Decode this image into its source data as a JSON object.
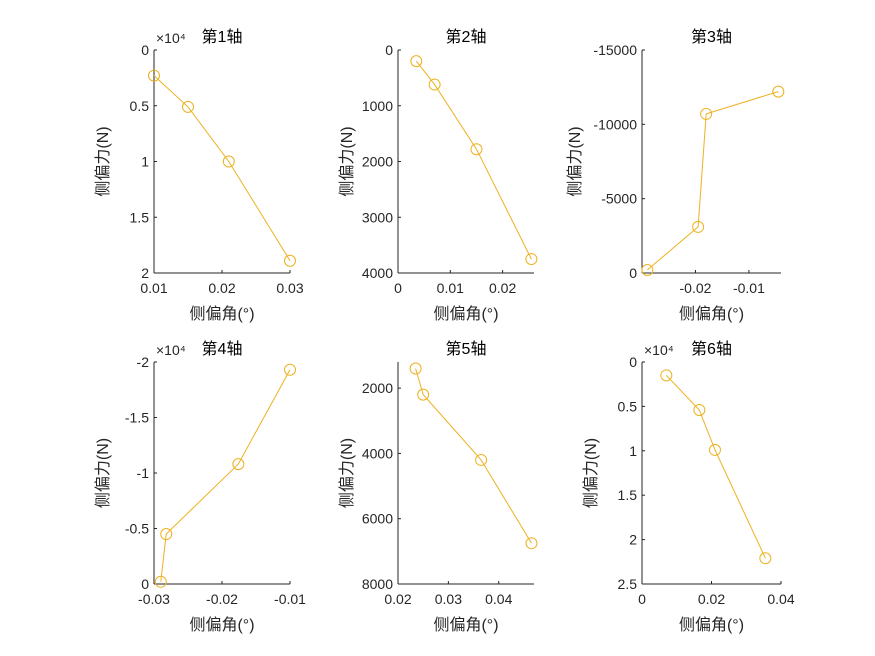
{
  "colors": {
    "series": "#EDB120",
    "axis": "#262626"
  },
  "chart_data": [
    {
      "type": "line",
      "marker": "circle",
      "title": "第1轴",
      "xlabel": "侧偏角(°)",
      "ylabel": "侧偏力(N)",
      "x": [
        0.01,
        0.015,
        0.021,
        0.03
      ],
      "y": [
        2300,
        5100,
        10000,
        18900
      ],
      "xlim": [
        0.01,
        0.03
      ],
      "ylim": [
        0,
        20000
      ],
      "y_reversed": true,
      "xticks": [
        0.01,
        0.02,
        0.03
      ],
      "xtick_labels": [
        "0.01",
        "0.02",
        "0.03"
      ],
      "yticks": [
        0,
        5000,
        10000,
        15000,
        20000
      ],
      "ytick_labels": [
        "0",
        "0.5",
        "1",
        "1.5",
        "2"
      ],
      "y_exponent_label": "×10⁴"
    },
    {
      "type": "line",
      "marker": "circle",
      "title": "第2轴",
      "xlabel": "侧偏角(°)",
      "ylabel": "侧偏力(N)",
      "x": [
        0.0035,
        0.007,
        0.015,
        0.0255
      ],
      "y": [
        200,
        620,
        1780,
        3750
      ],
      "xlim": [
        0,
        0.026
      ],
      "ylim": [
        0,
        4000
      ],
      "y_reversed": true,
      "xticks": [
        0,
        0.01,
        0.02
      ],
      "xtick_labels": [
        "0",
        "0.01",
        "0.02"
      ],
      "yticks": [
        0,
        1000,
        2000,
        3000,
        4000
      ],
      "ytick_labels": [
        "0",
        "1000",
        "2000",
        "3000",
        "4000"
      ]
    },
    {
      "type": "line",
      "marker": "circle",
      "title": "第3轴",
      "xlabel": "侧偏角(°)",
      "ylabel": "侧偏力(N)",
      "x": [
        -0.029,
        -0.0195,
        -0.018,
        -0.0045
      ],
      "y": [
        -200,
        -3100,
        -10700,
        -12200
      ],
      "xlim": [
        -0.03,
        -0.004
      ],
      "ylim": [
        -15000,
        0
      ],
      "y_reversed": true,
      "xticks": [
        -0.02,
        -0.01
      ],
      "xtick_labels": [
        "-0.02",
        "-0.01"
      ],
      "yticks": [
        -15000,
        -10000,
        -5000,
        0
      ],
      "ytick_labels": [
        "-15000",
        "-10000",
        "-5000",
        "0"
      ]
    },
    {
      "type": "line",
      "marker": "circle",
      "title": "第4轴",
      "xlabel": "侧偏角(°)",
      "ylabel": "侧偏力(N)",
      "x": [
        -0.029,
        -0.0282,
        -0.0176,
        -0.01
      ],
      "y": [
        -200,
        -4500,
        -10800,
        -19300
      ],
      "xlim": [
        -0.03,
        -0.01
      ],
      "ylim": [
        -20000,
        0
      ],
      "y_reversed": true,
      "xticks": [
        -0.03,
        -0.02,
        -0.01
      ],
      "xtick_labels": [
        "-0.03",
        "-0.02",
        "-0.01"
      ],
      "yticks": [
        -20000,
        -15000,
        -10000,
        -5000,
        0
      ],
      "ytick_labels": [
        "-2",
        "-1.5",
        "-1",
        "-0.5",
        "0"
      ],
      "y_exponent_label": "×10⁴"
    },
    {
      "type": "line",
      "marker": "circle",
      "title": "第5轴",
      "xlabel": "侧偏角(°)",
      "ylabel": "侧偏力(N)",
      "x": [
        0.0235,
        0.025,
        0.0365,
        0.0465
      ],
      "y": [
        1400,
        2200,
        4200,
        6750
      ],
      "xlim": [
        0.02,
        0.047
      ],
      "ylim": [
        1200,
        8000
      ],
      "y_reversed": true,
      "xticks": [
        0.02,
        0.03,
        0.04
      ],
      "xtick_labels": [
        "0.02",
        "0.03",
        "0.04"
      ],
      "yticks": [
        2000,
        4000,
        6000,
        8000
      ],
      "ytick_labels": [
        "2000",
        "4000",
        "6000",
        "8000"
      ]
    },
    {
      "type": "line",
      "marker": "circle",
      "title": "第6轴",
      "xlabel": "侧偏角(°)",
      "ylabel": "侧偏力(N)",
      "x": [
        0.007,
        0.0165,
        0.021,
        0.0355
      ],
      "y": [
        1500,
        5400,
        9900,
        22100
      ],
      "xlim": [
        0,
        0.04
      ],
      "ylim": [
        0,
        25000
      ],
      "y_reversed": true,
      "xticks": [
        0,
        0.02,
        0.04
      ],
      "xtick_labels": [
        "0",
        "0.02",
        "0.04"
      ],
      "yticks": [
        0,
        5000,
        10000,
        15000,
        20000,
        25000
      ],
      "ytick_labels": [
        "0",
        "0.5",
        "1",
        "1.5",
        "2",
        "2.5"
      ],
      "y_exponent_label": "×10⁴"
    }
  ]
}
